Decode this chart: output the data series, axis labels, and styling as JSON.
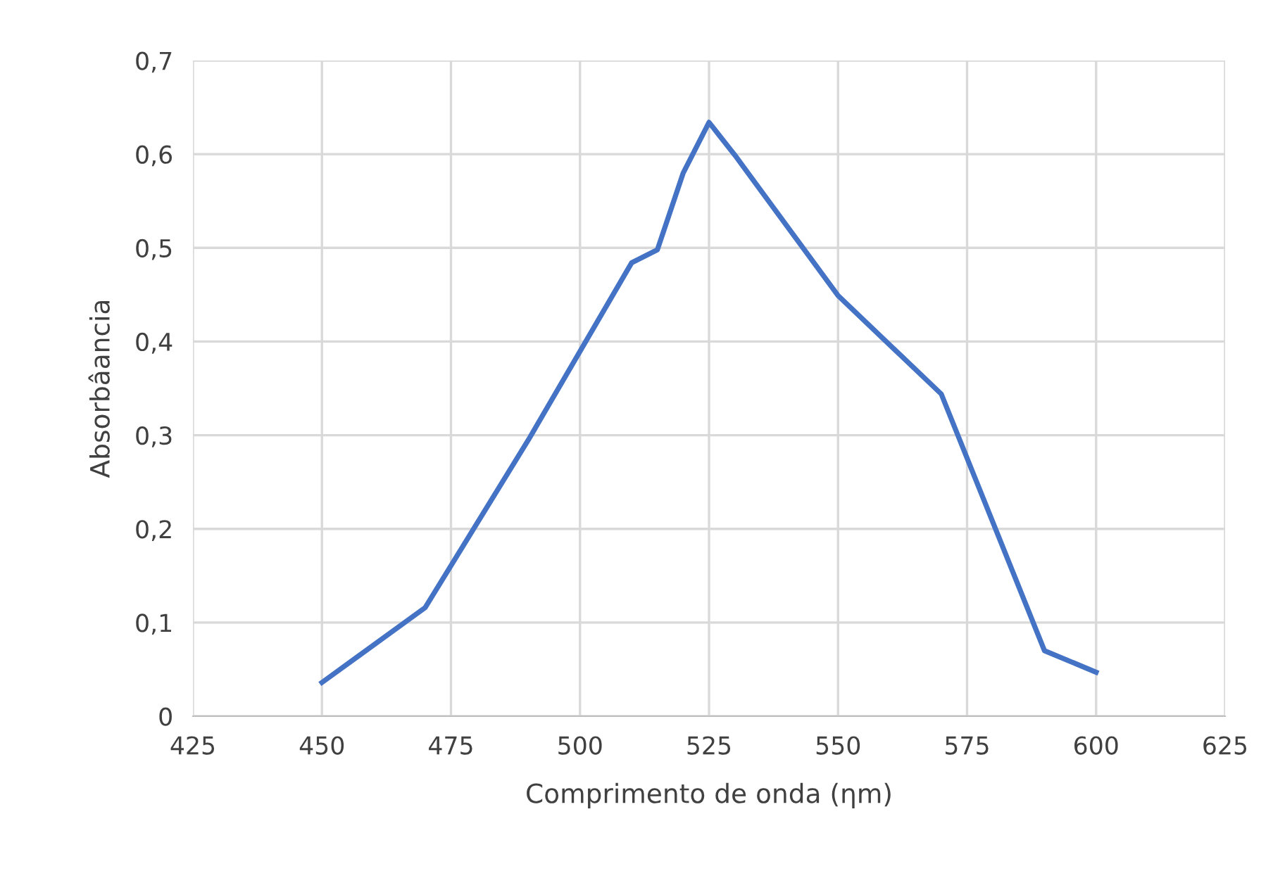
{
  "chart_data": {
    "type": "line",
    "xlabel": "Comprimento de onda (ƞm)",
    "ylabel": "Absorbâancia",
    "x": [
      450,
      470,
      490,
      510,
      515,
      520,
      525,
      530,
      550,
      570,
      590,
      600
    ],
    "series": [
      {
        "color": "#4472c4",
        "values": [
          0.036,
          0.116,
          0.295,
          0.484,
          0.498,
          0.58,
          0.634,
          0.599,
          0.449,
          0.344,
          0.07,
          0.047
        ]
      }
    ],
    "xlim": [
      425,
      625
    ],
    "xticks": [
      425,
      450,
      475,
      500,
      525,
      550,
      575,
      600,
      625
    ],
    "ylim": [
      0,
      0.7
    ],
    "yticks": [
      0,
      {
        "value": 0.1,
        "label": "0,1"
      },
      {
        "value": 0.2,
        "label": "0,2"
      },
      {
        "value": 0.3,
        "label": "0,3"
      },
      {
        "value": 0.4,
        "label": "0,4"
      },
      {
        "value": 0.5,
        "label": "0,5"
      },
      {
        "value": 0.6,
        "label": "0,6"
      },
      {
        "value": 0.7,
        "label": "0,7"
      }
    ],
    "grid": true,
    "marker": "none",
    "line_style": "solid"
  }
}
